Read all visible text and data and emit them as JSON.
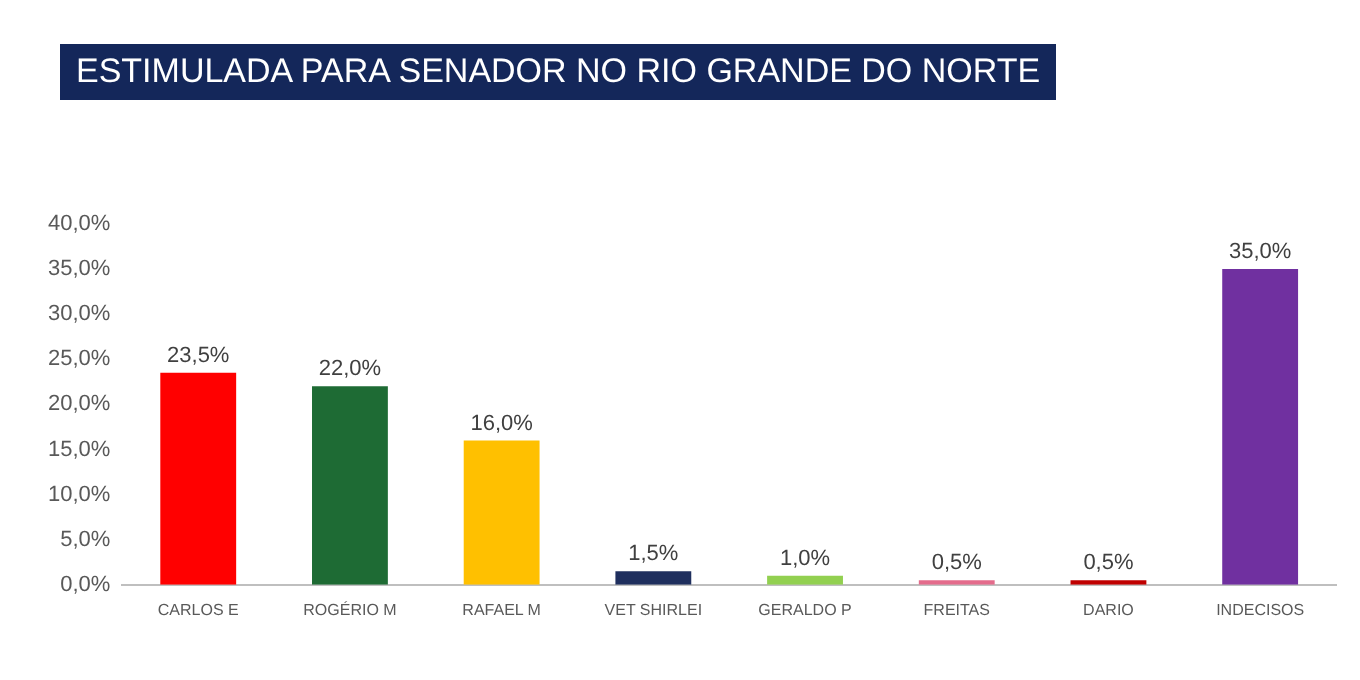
{
  "chart_data": {
    "type": "bar",
    "title": "ESTIMULADA PARA SENADOR NO RIO GRANDE DO NORTE",
    "categories": [
      "CARLOS E",
      "ROGÉRIO M",
      "RAFAEL M",
      "VET SHIRLEI",
      "GERALDO P",
      "FREITAS",
      "DARIO",
      "INDECISOS"
    ],
    "values": [
      23.5,
      22.0,
      16.0,
      1.5,
      1.0,
      0.5,
      0.5,
      35.0
    ],
    "colors": [
      "#ff0000",
      "#1e6b34",
      "#ffc000",
      "#1f2f5e",
      "#92d050",
      "#e46c8c",
      "#c00000",
      "#7030a0"
    ],
    "value_labels": [
      "23,5%",
      "22,0%",
      "16,0%",
      "1,5%",
      "1,0%",
      "0,5%",
      "0,5%",
      "35,0%"
    ],
    "ylim": [
      0,
      40
    ],
    "yticks": [
      {
        "value": 0,
        "label": "0,0%"
      },
      {
        "value": 5,
        "label": "5,0%"
      },
      {
        "value": 10,
        "label": "10,0%"
      },
      {
        "value": 15,
        "label": "15,0%"
      },
      {
        "value": 20,
        "label": "20,0%"
      },
      {
        "value": 25,
        "label": "25,0%"
      },
      {
        "value": 30,
        "label": "30,0%"
      },
      {
        "value": 35,
        "label": "35,0%"
      },
      {
        "value": 40,
        "label": "40,0%"
      }
    ],
    "grid": false,
    "legend": false
  }
}
